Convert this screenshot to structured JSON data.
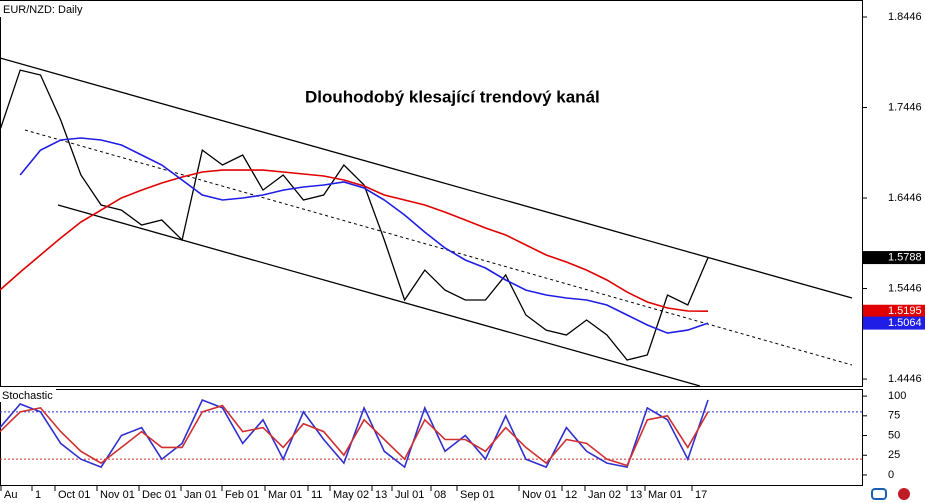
{
  "chart_data": [
    {
      "type": "line",
      "title": "EUR/NZD: Daily",
      "annotation": "Dlouhodobý klesající trendový kanál",
      "ylim": [
        1.4369,
        1.8634
      ],
      "yticks": [
        1.8446,
        1.7446,
        1.6446,
        1.5446,
        1.4446
      ],
      "x_labels": [
        "Au",
        "1",
        "Oct 01",
        "Nov 01",
        "Dec 01",
        "Jan 01",
        "Feb 01",
        "Mar 01",
        "11",
        "May 02",
        "13",
        "Jul 01",
        "08",
        "Sep 01",
        "Nov 01",
        "12",
        "Jan 02",
        "13",
        "Mar 01",
        "17"
      ],
      "series": [
        {
          "color": "#000000",
          "values": [
            1.7197,
            1.786,
            1.7805,
            1.7308,
            1.67,
            1.6369,
            1.6313,
            1.6148,
            1.6203,
            1.5982,
            1.6976,
            1.6811,
            1.6921,
            1.6534,
            1.67,
            1.6424,
            1.6479,
            1.6811,
            1.659,
            1.5982,
            1.5319,
            1.565,
            1.5429,
            1.5319,
            1.5319,
            1.5595,
            1.5153,
            1.4987,
            1.4932,
            1.5098,
            1.4932,
            1.4656,
            1.4711,
            1.5374,
            1.5264,
            1.5788
          ]
        },
        {
          "color": "#e00000",
          "values": [
            1.543,
            1.5628,
            1.5816,
            1.6004,
            1.6181,
            1.6313,
            1.6446,
            1.6534,
            1.6612,
            1.6678,
            1.6733,
            1.6755,
            1.6755,
            1.6755,
            1.6733,
            1.6711,
            1.6689,
            1.6645,
            1.6579,
            1.6479,
            1.6424,
            1.6369,
            1.6291,
            1.6203,
            1.6115,
            1.6037,
            1.5927,
            1.5816,
            1.5739,
            1.565,
            1.554,
            1.5407,
            1.5297,
            1.5231,
            1.5198,
            1.5195
          ]
        },
        {
          "color": "#1e1ee6",
          "values": [
            null,
            1.67,
            1.6976,
            1.7087,
            1.7109,
            1.7087,
            1.7032,
            1.6921,
            1.6811,
            1.6645,
            1.6479,
            1.6424,
            1.6446,
            1.6479,
            1.6534,
            1.6568,
            1.659,
            1.6623,
            1.6557,
            1.6424,
            1.6258,
            1.607,
            1.5894,
            1.5761,
            1.5673,
            1.554,
            1.5429,
            1.5374,
            1.5341,
            1.5319,
            1.5264,
            1.5153,
            1.5043,
            1.4954,
            1.4987,
            1.5064
          ]
        }
      ]
    },
    {
      "type": "line",
      "title": "Stochastic",
      "ylim": [
        -14,
        109
      ],
      "yticks": [
        100,
        75,
        50,
        25,
        0
      ],
      "levels": [
        80,
        20
      ],
      "level_colors": [
        "#3030d0",
        "#d03030"
      ],
      "series": [
        {
          "color": "#3030d0",
          "values": [
            60,
            90,
            80,
            40,
            20,
            10,
            50,
            60,
            20,
            40,
            95,
            85,
            40,
            70,
            20,
            80,
            45,
            15,
            85,
            30,
            10,
            85,
            30,
            50,
            20,
            75,
            20,
            10,
            60,
            30,
            15,
            10,
            85,
            70,
            20,
            95
          ]
        },
        {
          "color": "#d03030",
          "values": [
            55,
            80,
            85,
            55,
            30,
            15,
            35,
            55,
            35,
            35,
            80,
            88,
            55,
            60,
            35,
            65,
            55,
            25,
            70,
            45,
            20,
            70,
            45,
            45,
            30,
            60,
            35,
            15,
            45,
            40,
            20,
            12,
            70,
            75,
            35,
            80
          ]
        }
      ]
    }
  ]
}
